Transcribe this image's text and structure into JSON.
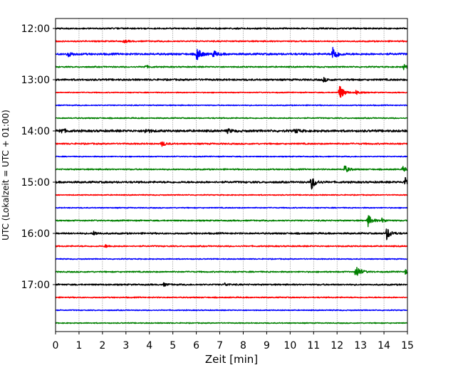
{
  "chart_data": {
    "type": "line",
    "title": "",
    "xlabel": "Zeit  [min]",
    "ylabel": "UTC (Lokalzeit = UTC + 01:00)",
    "xlim": [
      0,
      15
    ],
    "x_ticks": [
      "0",
      "1",
      "2",
      "3",
      "4",
      "5",
      "6",
      "7",
      "8",
      "9",
      "10",
      "11",
      "12",
      "13",
      "14",
      "15"
    ],
    "y_ticks": [
      {
        "row": 0,
        "label": "12:00"
      },
      {
        "row": 4,
        "label": "13:00"
      },
      {
        "row": 8,
        "label": "14:00"
      },
      {
        "row": 12,
        "label": "15:00"
      },
      {
        "row": 16,
        "label": "16:00"
      },
      {
        "row": 20,
        "label": "17:00"
      }
    ],
    "grid": "vertical dotted",
    "colors": [
      "#000000",
      "#ff0000",
      "#0000ff",
      "#008000"
    ],
    "traces": [
      {
        "start": "12:00",
        "color": "#000000",
        "noise": 0.9,
        "events": []
      },
      {
        "start": "12:15",
        "color": "#ff0000",
        "noise": 0.8,
        "events": [
          {
            "t": 2.9,
            "amp": 2
          }
        ]
      },
      {
        "start": "12:30",
        "color": "#0000ff",
        "noise": 1.2,
        "events": [
          {
            "t": 0.5,
            "amp": 4
          },
          {
            "t": 6.0,
            "amp": 10
          },
          {
            "t": 6.7,
            "amp": 5
          },
          {
            "t": 11.8,
            "amp": 12
          }
        ]
      },
      {
        "start": "12:45",
        "color": "#008000",
        "noise": 0.8,
        "events": [
          {
            "t": 3.8,
            "amp": 2
          },
          {
            "t": 14.8,
            "amp": 4
          }
        ]
      },
      {
        "start": "13:00",
        "color": "#000000",
        "noise": 1.1,
        "events": [
          {
            "t": 11.4,
            "amp": 3
          }
        ]
      },
      {
        "start": "13:15",
        "color": "#ff0000",
        "noise": 0.6,
        "events": [
          {
            "t": 12.1,
            "amp": 11
          },
          {
            "t": 12.8,
            "amp": 3
          }
        ]
      },
      {
        "start": "13:30",
        "color": "#0000ff",
        "noise": 0.6,
        "events": []
      },
      {
        "start": "13:45",
        "color": "#008000",
        "noise": 0.7,
        "events": []
      },
      {
        "start": "14:00",
        "color": "#000000",
        "noise": 1.4,
        "events": [
          {
            "t": 0.2,
            "amp": 4
          },
          {
            "t": 3.8,
            "amp": 3
          },
          {
            "t": 7.3,
            "amp": 3
          },
          {
            "t": 10.2,
            "amp": 3
          }
        ]
      },
      {
        "start": "14:15",
        "color": "#ff0000",
        "noise": 0.9,
        "events": [
          {
            "t": 4.5,
            "amp": 4
          }
        ]
      },
      {
        "start": "14:30",
        "color": "#0000ff",
        "noise": 0.6,
        "events": []
      },
      {
        "start": "14:45",
        "color": "#008000",
        "noise": 0.8,
        "events": [
          {
            "t": 12.3,
            "amp": 6
          },
          {
            "t": 14.8,
            "amp": 4
          }
        ]
      },
      {
        "start": "15:00",
        "color": "#000000",
        "noise": 1.2,
        "events": [
          {
            "t": 10.9,
            "amp": 10
          },
          {
            "t": 14.9,
            "amp": 9
          }
        ]
      },
      {
        "start": "15:15",
        "color": "#ff0000",
        "noise": 0.6,
        "events": []
      },
      {
        "start": "15:30",
        "color": "#0000ff",
        "noise": 0.6,
        "events": []
      },
      {
        "start": "15:45",
        "color": "#008000",
        "noise": 0.8,
        "events": [
          {
            "t": 13.3,
            "amp": 9
          },
          {
            "t": 13.9,
            "amp": 3
          }
        ]
      },
      {
        "start": "16:00",
        "color": "#000000",
        "noise": 1.0,
        "events": [
          {
            "t": 1.6,
            "amp": 3
          },
          {
            "t": 14.1,
            "amp": 9
          }
        ]
      },
      {
        "start": "16:15",
        "color": "#ff0000",
        "noise": 0.8,
        "events": [
          {
            "t": 2.1,
            "amp": 2
          }
        ]
      },
      {
        "start": "16:30",
        "color": "#0000ff",
        "noise": 0.6,
        "events": []
      },
      {
        "start": "16:45",
        "color": "#008000",
        "noise": 0.8,
        "events": [
          {
            "t": 12.8,
            "amp": 11
          },
          {
            "t": 14.9,
            "amp": 3
          }
        ]
      },
      {
        "start": "17:00",
        "color": "#000000",
        "noise": 0.9,
        "events": [
          {
            "t": 4.6,
            "amp": 2
          },
          {
            "t": 7.2,
            "amp": 2
          }
        ]
      },
      {
        "start": "17:15",
        "color": "#ff0000",
        "noise": 0.7,
        "events": []
      },
      {
        "start": "17:30",
        "color": "#0000ff",
        "noise": 0.6,
        "events": []
      },
      {
        "start": "17:45",
        "color": "#008000",
        "noise": 0.6,
        "events": []
      }
    ]
  }
}
